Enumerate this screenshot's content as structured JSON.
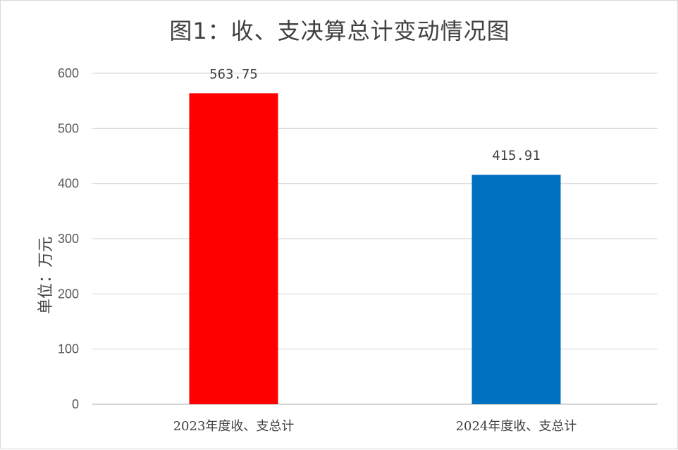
{
  "chart_data": {
    "type": "bar",
    "title": "图1：收、支决算总计变动情况图",
    "ylabel": "单位：万元",
    "xlabel": "",
    "categories": [
      "2023年度收、支总计",
      "2024年度收、支总计"
    ],
    "values": [
      563.75,
      415.91
    ],
    "value_labels": [
      "563.75",
      "415.91"
    ],
    "bar_colors": [
      "#ff0000",
      "#0070c0"
    ],
    "ylim": [
      0,
      600
    ],
    "yticks": [
      0,
      100,
      200,
      300,
      400,
      500,
      600
    ],
    "grid": true,
    "legend": "none"
  }
}
